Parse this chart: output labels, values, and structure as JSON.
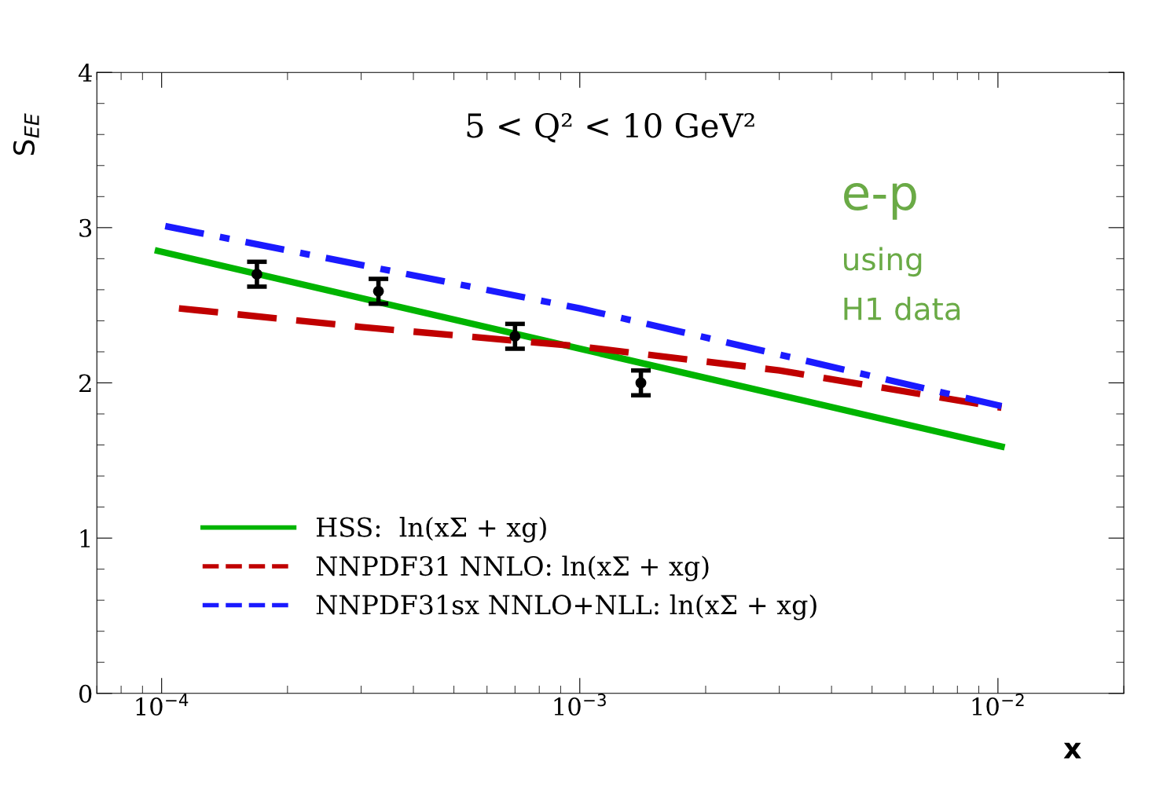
{
  "chart_data": {
    "type": "line",
    "title": "5 < Q² < 10 GeV²",
    "xlabel": "x",
    "ylabel": "S$_{EE}$",
    "annotations": [
      "e-p",
      "using",
      "H1 data"
    ],
    "log": "x",
    "xlim": [
      7e-05,
      0.02
    ],
    "ylim": [
      0,
      4
    ],
    "xticks": [
      {
        "value": 0.0001,
        "label": "10$^{−4}$"
      },
      {
        "value": 0.001,
        "label": "10$^{−3}$"
      },
      {
        "value": 0.01,
        "label": "10$^{−2}$"
      }
    ],
    "yticks": [
      0,
      1,
      2,
      3,
      4
    ],
    "grid": false,
    "legend": "bottom left",
    "series": [
      {
        "name": "HSS:  ln(xΣ + xg)",
        "color": "#00b400",
        "line_style": "solid",
        "x": [
          9.8e-05,
          0.0102
        ],
        "values": [
          2.85,
          1.59
        ]
      },
      {
        "name": "NNPDF31 NNLO: ln(xΣ + xg)",
        "color": "#c00000",
        "line_style": "dashed",
        "x": [
          0.00011,
          0.0003,
          0.001,
          0.003,
          0.0102
        ],
        "values": [
          2.48,
          2.36,
          2.235,
          2.08,
          1.84
        ]
      },
      {
        "name": "NNPDF31sx NNLO+NLL: ln(xΣ + xg)",
        "color": "#1a1aff",
        "line_style": "dashdot",
        "x": [
          0.000102,
          0.001,
          0.0102
        ],
        "values": [
          3.01,
          2.48,
          1.85
        ]
      },
      {
        "type": "scatter",
        "color": "#000000",
        "marker": "circle",
        "x": [
          0.000169,
          0.00033,
          0.0007,
          0.0014
        ],
        "values": [
          2.7,
          2.59,
          2.3,
          2.0
        ],
        "errors": [
          0.08,
          0.08,
          0.08,
          0.08
        ]
      }
    ]
  }
}
